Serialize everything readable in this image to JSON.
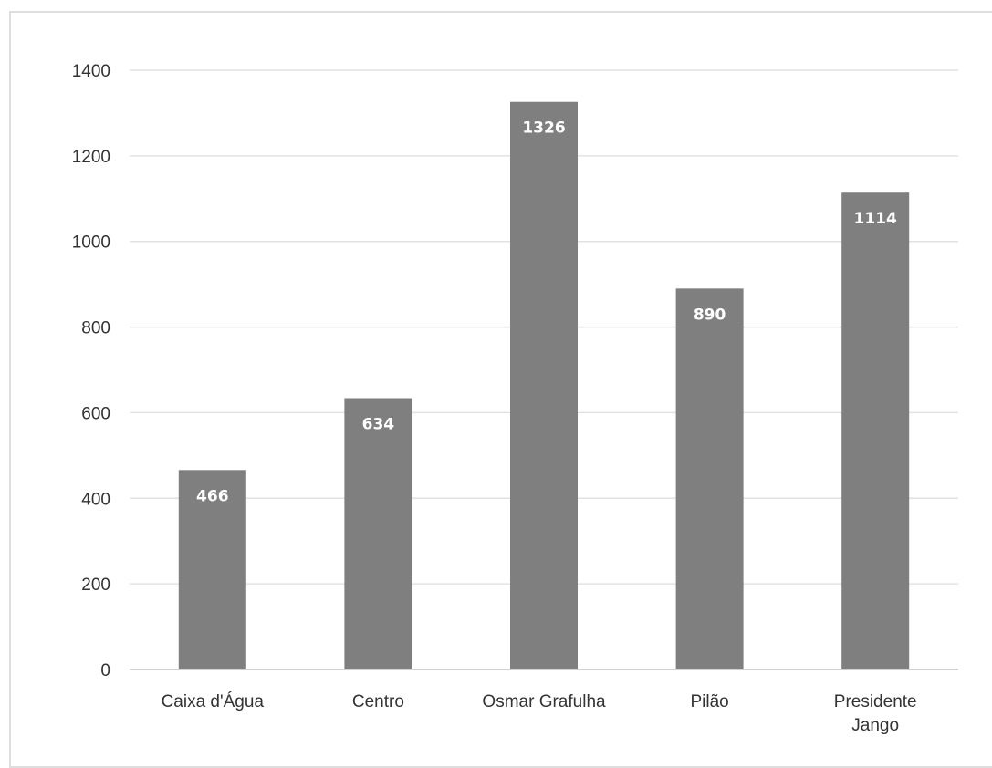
{
  "chart_data": {
    "type": "bar",
    "categories": [
      [
        "Caixa d'Água"
      ],
      [
        "Centro"
      ],
      [
        "Osmar Grafulha"
      ],
      [
        "Pilão"
      ],
      [
        "Presidente",
        "Jango"
      ]
    ],
    "values": [
      466,
      634,
      1326,
      890,
      1114
    ],
    "data_labels": [
      "466",
      "634",
      "1326",
      "890",
      "1114"
    ],
    "y_ticks": [
      "0",
      "200",
      "400",
      "600",
      "800",
      "1000",
      "1200",
      "1400"
    ],
    "ylim": [
      0,
      1400
    ],
    "grid": true,
    "legend": "none",
    "title": "",
    "xlabel": "",
    "ylabel": "",
    "colors": {
      "bar": "#7f7f7f",
      "grid": "#e2e2e2",
      "axis": "#cfcfcf",
      "data_label": "#ffffff",
      "tick_text": "#333333"
    }
  }
}
